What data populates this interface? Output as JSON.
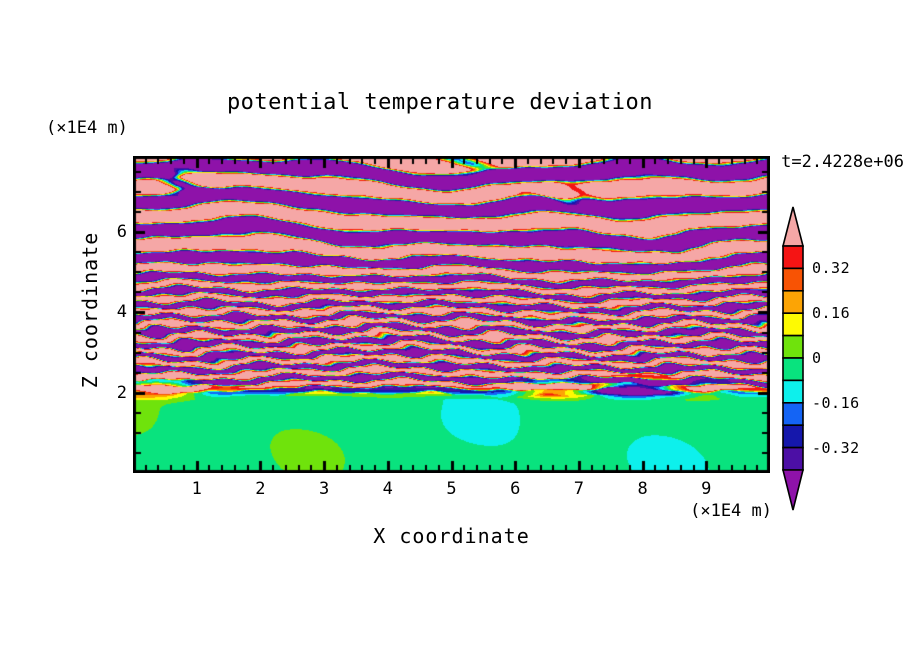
{
  "title": "potential temperature deviation",
  "timestamp": "t=2.4228e+06",
  "axes": {
    "x_label": "X coordinate",
    "x_unit": "(×1E4 m)",
    "y_label": "Z coordinate",
    "y_unit": "(×1E4 m)",
    "x_tick_labels": [
      "1",
      "2",
      "3",
      "4",
      "5",
      "6",
      "7",
      "8",
      "9"
    ],
    "y_tick_labels": [
      "2",
      "4",
      "6"
    ]
  },
  "colorbar": {
    "labels": [
      "0.32",
      "0.16",
      "0",
      "-0.16",
      "-0.32"
    ],
    "outline_color": "#000000"
  },
  "chart_data": {
    "type": "heatmap",
    "title": "potential temperature deviation",
    "annotation": "t=2.4228e+06",
    "xlabel": "X coordinate (×1E4 m)",
    "ylabel": "Z coordinate (×1E4 m)",
    "xlim": [
      0,
      10
    ],
    "ylim": [
      0,
      7.9
    ],
    "x_major_ticks": [
      1,
      2,
      3,
      4,
      5,
      6,
      7,
      8,
      9
    ],
    "x_minor_tick_step": 0.2,
    "y_major_ticks": [
      2,
      4,
      6
    ],
    "y_minor_tick_step": 0.5,
    "grid": false,
    "legend_position": "right-colorbar-with-over-under-arrows",
    "contour_levels": [
      -0.4,
      -0.32,
      -0.24,
      -0.16,
      -0.08,
      0,
      0.08,
      0.16,
      0.24,
      0.32,
      0.4
    ],
    "palette_low_to_high": [
      "#8E12A9",
      "#4C0FA5",
      "#1517AB",
      "#1464F5",
      "#0DF0EC",
      "#09E37E",
      "#6FE30C",
      "#FEFA02",
      "#FCA405",
      "#F85304",
      "#F51414",
      "#F5A7A6"
    ],
    "colorbar_labeled_levels": [
      0.32,
      0.16,
      0,
      -0.16,
      -0.32
    ],
    "regions": [
      {
        "z_range": [
          5.2,
          7.9
        ],
        "description": "thick wavy horizontal bands alternating above +0.4 (pink) and below -0.4 (purple) with thin rainbow transition edges"
      },
      {
        "z_range": [
          2.0,
          5.2
        ],
        "description": "fine turbulent sheared stripes cycling through the full color range (±0.45)"
      },
      {
        "z_range": [
          0,
          2.0
        ],
        "description": "weak deviations near zero: spring-green (-0.08..0) background with chartreuse (0..0.08) blobs; shear streaks of strong ± values along the z≈2 interface"
      }
    ]
  }
}
